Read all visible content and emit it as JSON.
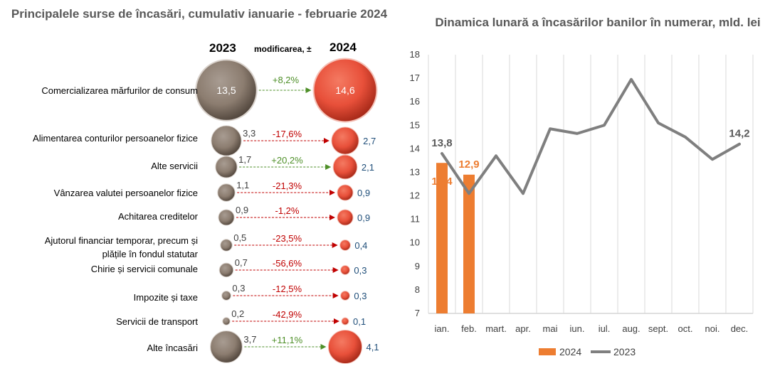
{
  "left": {
    "title": "Principalele surse de încasări, cumulativ ianuarie - februarie 2024",
    "col_2023": "2023",
    "col_change": "modificarea, ±",
    "col_2024": "2024",
    "rows": [
      {
        "label": "Comercializarea mărfurilor de consum",
        "v2023": "13,5",
        "change": "+8,2%",
        "v2024": "14,6"
      },
      {
        "label": "Alimentarea conturilor persoanelor fizice",
        "v2023": "3,3",
        "change": "-17,6%",
        "v2024": "2,7"
      },
      {
        "label": "Alte servicii",
        "v2023": "1,7",
        "change": "+20,2%",
        "v2024": "2,1"
      },
      {
        "label": "Vânzarea valutei persoanelor fizice",
        "v2023": "1,1",
        "change": "-21,3%",
        "v2024": "0,9"
      },
      {
        "label": "Achitarea creditelor",
        "v2023": "0,9",
        "change": "-1,2%",
        "v2024": "0,9"
      },
      {
        "label": "Ajutorul financiar temporar, precum și plățile în fondul statutar",
        "v2023": "0,5",
        "change": "-23,5%",
        "v2024": "0,4"
      },
      {
        "label": "Chirie și servicii comunale",
        "v2023": "0,7",
        "change": "-56,6%",
        "v2024": "0,3"
      },
      {
        "label": "Impozite și taxe",
        "v2023": "0,3",
        "change": "-12,5%",
        "v2024": "0,3"
      },
      {
        "label": "Servicii de transport",
        "v2023": "0,2",
        "change": "-42,9%",
        "v2024": "0,1"
      },
      {
        "label": "Alte încasări",
        "v2023": "3,7",
        "change": "+11,1%",
        "v2024": "4,1"
      }
    ]
  },
  "chart_data": {
    "type": "line",
    "title": "Dinamica lunară a încasărilor banilor în numerar, mld. lei",
    "categories": [
      "ian.",
      "feb.",
      "mart.",
      "apr.",
      "mai",
      "iun.",
      "iul.",
      "aug.",
      "sept.",
      "oct.",
      "noi.",
      "dec."
    ],
    "ylim": [
      7,
      18
    ],
    "yticks": [
      7,
      8,
      9,
      10,
      11,
      12,
      13,
      14,
      15,
      16,
      17,
      18
    ],
    "grid": true,
    "legend_position": "bottom",
    "series": [
      {
        "name": "2024",
        "kind": "bar",
        "color": "#ED7D31",
        "values": [
          13.4,
          12.9,
          null,
          null,
          null,
          null,
          null,
          null,
          null,
          null,
          null,
          null
        ]
      },
      {
        "name": "2023",
        "kind": "line",
        "color": "#7F7F7F",
        "values": [
          13.8,
          12.1,
          13.7,
          12.1,
          14.85,
          14.65,
          15.0,
          16.95,
          15.1,
          14.5,
          13.55,
          14.2
        ]
      }
    ],
    "data_labels": {
      "bar_ian": "13,4",
      "bar_feb": "12,9",
      "line_ian": "13,8",
      "line_dec": "14,2"
    }
  },
  "colors": {
    "title_gray": "#595959",
    "bubble_2023": "#8C7D70",
    "bubble_2024": "#E8503A",
    "positive": "#4E8F28",
    "negative": "#C00000",
    "value_2024": "#1F4E79"
  }
}
